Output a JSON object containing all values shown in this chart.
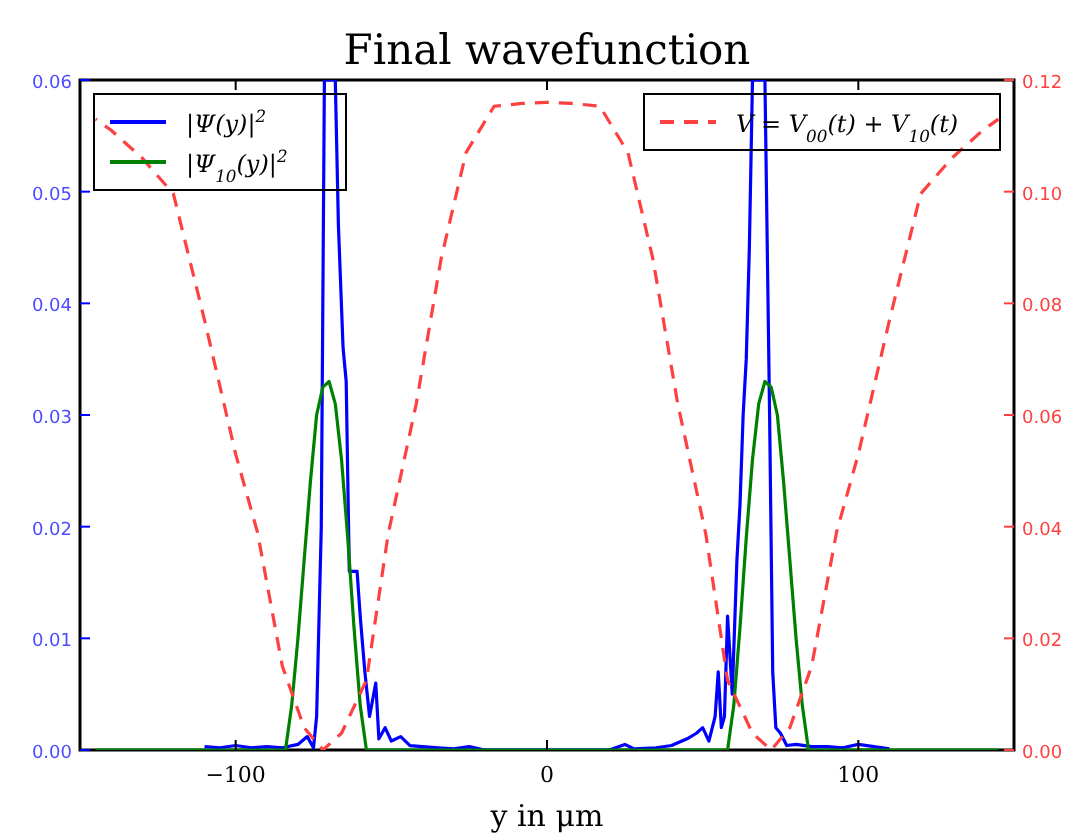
{
  "chart_data": {
    "type": "line",
    "title": "Final wavefunction",
    "xlabel": "y in μm",
    "xlim": [
      -150,
      150
    ],
    "xticks": [
      {
        "value": -100,
        "label": "−100"
      },
      0,
      100
    ],
    "ylim": [
      0,
      0.06
    ],
    "yticks": [
      {
        "value": 0,
        "label": "0.00"
      },
      {
        "value": 0.01,
        "label": "0.01"
      },
      {
        "value": 0.02,
        "label": "0.02"
      },
      {
        "value": 0.03,
        "label": "0.03"
      },
      {
        "value": 0.04,
        "label": "0.04"
      },
      {
        "value": 0.05,
        "label": "0.05"
      },
      {
        "value": 0.06,
        "label": "0.06"
      }
    ],
    "y2lim": [
      0,
      0.12
    ],
    "y2ticks": [
      {
        "value": 0,
        "label": "0.00"
      },
      {
        "value": 0.02,
        "label": "0.02"
      },
      {
        "value": 0.04,
        "label": "0.04"
      },
      {
        "value": 0.06,
        "label": "0.06"
      },
      {
        "value": 0.08,
        "label": "0.08"
      },
      {
        "value": 0.1,
        "label": "0.10"
      },
      {
        "value": 0.12,
        "label": "0.12"
      }
    ],
    "grid": false,
    "legend": "top left",
    "marker": "none",
    "series": [
      {
        "name": "|Ψ(y)|$^{2}$",
        "color": "#0000ff",
        "line_style": "solid",
        "x": [
          -110,
          -105,
          -100,
          -95,
          -90,
          -85,
          -80,
          -77,
          -75,
          -74,
          -72.5,
          -71.5,
          -69,
          -68,
          -67,
          -65.5,
          -64.5,
          -63.5,
          -61,
          -60,
          -58.5,
          -57,
          -55,
          -54,
          -52,
          -50,
          -47,
          -44,
          -40,
          -35,
          -30,
          -25,
          -20,
          20,
          25,
          28,
          35,
          40,
          45,
          48,
          50,
          52,
          54,
          55,
          56,
          57,
          58,
          59.5,
          61,
          62,
          63,
          64,
          65,
          66,
          70,
          71.5,
          72.5,
          73.5,
          75,
          77,
          80,
          85,
          90,
          95,
          100,
          105,
          110
        ],
        "values": [
          0.0003,
          0.0002,
          0.0004,
          0.0002,
          0.0003,
          0.0002,
          0.0005,
          0.0012,
          0.0002,
          0.003,
          0.02,
          0.06,
          0.06,
          0.06,
          0.047,
          0.036,
          0.033,
          0.016,
          0.016,
          0.012,
          0.007,
          0.003,
          0.006,
          0.001,
          0.002,
          0.0008,
          0.0012,
          0.0004,
          0.0003,
          0.0002,
          0.0001,
          0.0003,
          0,
          0,
          0.0005,
          0.0001,
          0.0002,
          0.0004,
          0.001,
          0.0015,
          0.002,
          0.0008,
          0.003,
          0.007,
          0.002,
          0.003,
          0.012,
          0.005,
          0.017,
          0.022,
          0.03,
          0.035,
          0.045,
          0.06,
          0.06,
          0.03,
          0.007,
          0.002,
          0.0015,
          0.0004,
          0.0005,
          0.0003,
          0.0003,
          0.0002,
          0.0005,
          0.0003,
          0.0001
        ]
      },
      {
        "name": "|Ψ$_{10}$(y)|$^{2}$",
        "color": "#008000",
        "line_style": "solid",
        "x": [
          -145,
          -84,
          -82,
          -80,
          -78,
          -76,
          -74,
          -72,
          -70,
          -68,
          -66,
          -64,
          -62,
          -60,
          -58,
          58,
          60,
          62,
          64,
          66,
          68,
          70,
          72,
          74,
          76,
          78,
          80,
          82,
          84,
          145
        ],
        "values": [
          0,
          0,
          0.004,
          0.01,
          0.017,
          0.024,
          0.03,
          0.0325,
          0.033,
          0.031,
          0.026,
          0.019,
          0.011,
          0.004,
          0,
          0,
          0.004,
          0.011,
          0.019,
          0.026,
          0.031,
          0.033,
          0.0325,
          0.03,
          0.024,
          0.017,
          0.01,
          0.004,
          0,
          0
        ]
      },
      {
        "name": "V = V$_{00}$(t) + V$_{10}$(t)",
        "color": "#ff4040",
        "line_style": "dashed",
        "axis": "y2",
        "x": [
          -145,
          -140,
          -130,
          -120,
          -110,
          -100,
          -93,
          -85,
          -78,
          -72,
          -66,
          -58,
          -51,
          -42,
          -34,
          -26,
          -17,
          -8,
          0,
          8,
          17,
          26,
          34,
          42,
          51,
          58,
          66,
          72,
          78,
          85,
          93,
          100,
          110,
          120,
          130,
          140,
          145
        ],
        "values": [
          0.113,
          0.111,
          0.106,
          0.0996,
          0.077,
          0.053,
          0.039,
          0.015,
          0.004,
          0,
          0.003,
          0.0125,
          0.0387,
          0.062,
          0.088,
          0.107,
          0.1153,
          0.1158,
          0.116,
          0.1158,
          0.1153,
          0.107,
          0.088,
          0.062,
          0.0387,
          0.0125,
          0.003,
          0,
          0.004,
          0.015,
          0.039,
          0.053,
          0.077,
          0.0996,
          0.106,
          0.111,
          0.113
        ]
      }
    ]
  }
}
